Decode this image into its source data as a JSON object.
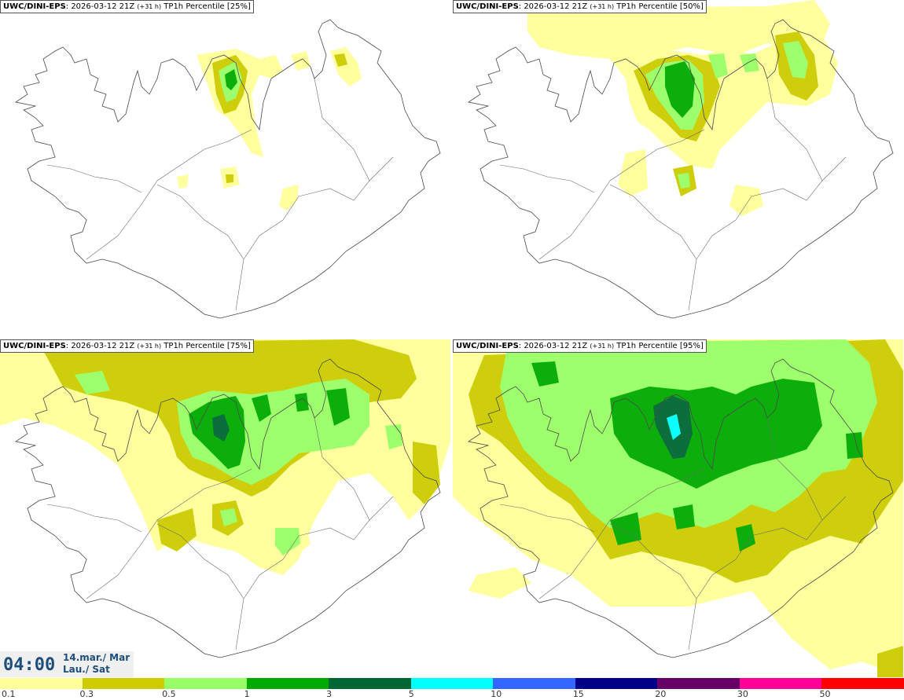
{
  "panels": [
    {
      "model": "UWC/DINI-EPS",
      "run": ": 2026-03-12 21Z ",
      "lead": "(+31 h)",
      "field": " TP1h Percentile [25%]"
    },
    {
      "model": "UWC/DINI-EPS",
      "run": ": 2026-03-12 21Z ",
      "lead": "(+31 h)",
      "field": " TP1h Percentile [50%]"
    },
    {
      "model": "UWC/DINI-EPS",
      "run": ": 2026-03-12 21Z ",
      "lead": "(+31 h)",
      "field": " TP1h Percentile [75%]"
    },
    {
      "model": "UWC/DINI-EPS",
      "run": ": 2026-03-12 21Z ",
      "lead": "(+31 h)",
      "field": " TP1h Percentile [95%]"
    }
  ],
  "valid_time": {
    "time": "04:00",
    "date_line1": "14.mar./ Mar",
    "date_line2": "Lau./ Sat"
  },
  "colorbar": {
    "colors": [
      "#ffff99",
      "#cccc00",
      "#99ff66",
      "#00aa00",
      "#006633",
      "#00ffff",
      "#3366ff",
      "#000088",
      "#660066",
      "#ff0099",
      "#ff0000"
    ],
    "labels": [
      "0.1",
      "0.3",
      "0.5",
      "1",
      "3",
      "5",
      "10",
      "15",
      "20",
      "30",
      "50"
    ]
  }
}
